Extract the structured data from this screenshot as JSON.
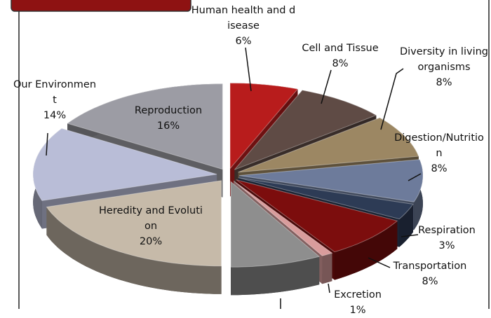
{
  "chart_data": {
    "type": "pie",
    "categories": [
      "Human health and disease",
      "Cell and Tissue",
      "Diversity in living organisms",
      "Digestion/Nutrition",
      "Respiration",
      "Transportation",
      "Excretion",
      null,
      "Heredity and Evolution",
      "Our Environment",
      "Reproduction"
    ],
    "values": [
      6,
      8,
      8,
      8,
      3,
      8,
      1,
      8,
      20,
      14,
      16
    ],
    "value_labels": [
      "6%",
      "8%",
      "8%",
      "8%",
      "3%",
      "8%",
      "1%",
      null,
      "20%",
      "14%",
      "16%"
    ],
    "colors": [
      "#b81c1c",
      "#5f4b45",
      "#9c8763",
      "#6d7b9b",
      "#2d3b55",
      "#7c0d0d",
      "#d99c9c",
      "#8e8e8e",
      "#c6baa9",
      "#b9bdd7",
      "#9c9ca4"
    ]
  }
}
